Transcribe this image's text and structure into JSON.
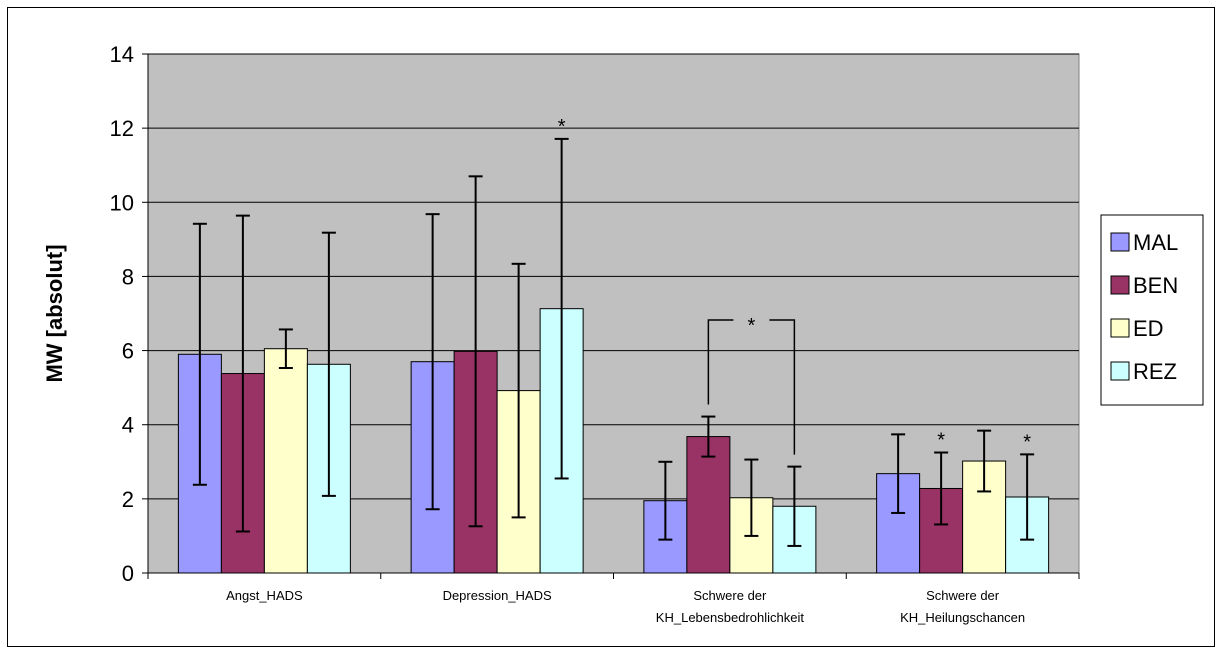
{
  "chart_data": {
    "type": "bar",
    "title": "",
    "xlabel": "",
    "ylabel": "MW [absolut]",
    "ylim": [
      0,
      14
    ],
    "yticks": [
      0,
      2,
      4,
      6,
      8,
      10,
      12,
      14
    ],
    "grid": true,
    "legend_position": "right",
    "categories": [
      [
        "Angst_HADS"
      ],
      [
        "Depression_HADS"
      ],
      [
        "Schwere der",
        "KH_Lebensbedrohlichkeit"
      ],
      [
        "Schwere der",
        "KH_Heilungschancen"
      ]
    ],
    "series": [
      {
        "name": "MAL",
        "color": "#9999FF",
        "values": [
          5.9,
          5.7,
          1.95,
          2.68
        ],
        "err": [
          3.52,
          3.98,
          1.05,
          1.06
        ]
      },
      {
        "name": "BEN",
        "color": "#993366",
        "values": [
          5.38,
          5.98,
          3.68,
          2.28
        ],
        "err": [
          4.26,
          4.72,
          0.54,
          0.97
        ]
      },
      {
        "name": "ED",
        "color": "#FFFFCC",
        "values": [
          6.05,
          4.92,
          2.03,
          3.02
        ],
        "err": [
          0.52,
          3.42,
          1.03,
          0.82
        ]
      },
      {
        "name": "REZ",
        "color": "#CCFFFF",
        "values": [
          5.63,
          7.13,
          1.8,
          2.05
        ],
        "err": [
          3.55,
          4.58,
          1.07,
          1.15
        ]
      }
    ],
    "annotations": [
      {
        "text": "*",
        "category": 1,
        "series": 3
      },
      {
        "text": "*",
        "category": 2,
        "bracket": [
          1,
          3
        ]
      },
      {
        "text": "*",
        "category": 3,
        "series": 1
      },
      {
        "text": "*",
        "category": 3,
        "series": 3
      }
    ],
    "plot_background": "#C0C0C0"
  }
}
